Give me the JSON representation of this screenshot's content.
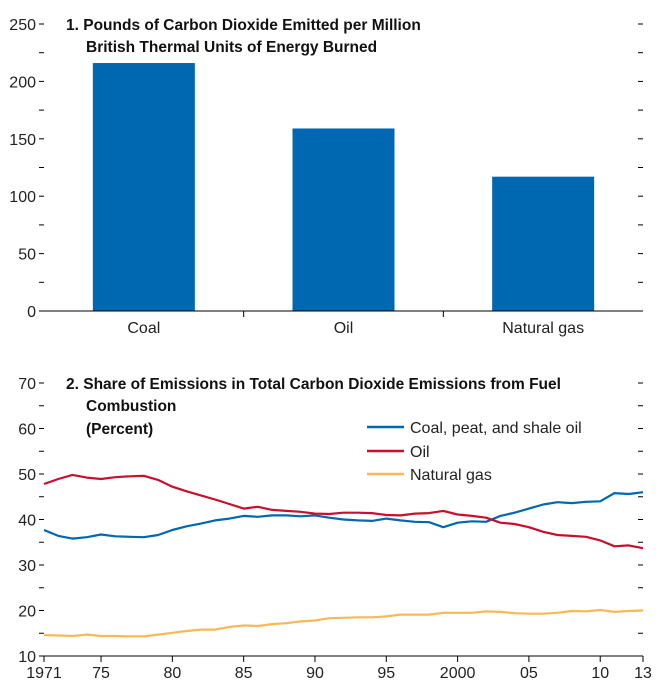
{
  "chart_data": [
    {
      "type": "bar",
      "title_line1": "1. Pounds of Carbon Dioxide Emitted per Million",
      "title_line2": "British Thermal Units of Energy Burned",
      "categories": [
        "Coal",
        "Oil",
        "Natural gas"
      ],
      "values": [
        216,
        159,
        117
      ],
      "ylim": [
        0,
        250
      ],
      "yticks": [
        "0",
        "50",
        "100",
        "150",
        "200",
        "250"
      ],
      "bar_color": "#0067b1"
    },
    {
      "type": "line",
      "title_line1": "2. Share of Emissions in Total Carbon Dioxide Emissions from Fuel",
      "title_line2": "Combustion",
      "title_line3": "(Percent)",
      "ylim": [
        10,
        70
      ],
      "yticks": [
        "10",
        "20",
        "30",
        "40",
        "50",
        "60",
        "70"
      ],
      "xticks": [
        {
          "year": 1971,
          "label": "1971"
        },
        {
          "year": 1975,
          "label": "75"
        },
        {
          "year": 1980,
          "label": "80"
        },
        {
          "year": 1985,
          "label": "85"
        },
        {
          "year": 1990,
          "label": "90"
        },
        {
          "year": 1995,
          "label": "95"
        },
        {
          "year": 2000,
          "label": "2000"
        },
        {
          "year": 2005,
          "label": "05"
        },
        {
          "year": 2010,
          "label": "10"
        },
        {
          "year": 2013,
          "label": "13"
        }
      ],
      "x": [
        1971,
        1972,
        1973,
        1974,
        1975,
        1976,
        1977,
        1978,
        1979,
        1980,
        1981,
        1982,
        1983,
        1984,
        1985,
        1986,
        1987,
        1988,
        1989,
        1990,
        1991,
        1992,
        1993,
        1994,
        1995,
        1996,
        1997,
        1998,
        1999,
        2000,
        2001,
        2002,
        2003,
        2004,
        2005,
        2006,
        2007,
        2008,
        2009,
        2010,
        2011,
        2012,
        2013
      ],
      "series": [
        {
          "name": "Coal, peat, and shale oil",
          "color": "#0067b1",
          "values": [
            37.7,
            36.4,
            35.8,
            36.1,
            36.7,
            36.3,
            36.2,
            36.1,
            36.6,
            37.7,
            38.5,
            39.1,
            39.8,
            40.2,
            40.8,
            40.6,
            40.9,
            40.9,
            40.7,
            40.9,
            40.4,
            40.0,
            39.8,
            39.7,
            40.2,
            39.8,
            39.5,
            39.4,
            38.3,
            39.3,
            39.6,
            39.5,
            40.8,
            41.5,
            42.4,
            43.3,
            43.8,
            43.6,
            43.9,
            44.0,
            45.8,
            45.6,
            46.0
          ]
        },
        {
          "name": "Oil",
          "color": "#c8102e",
          "values": [
            47.8,
            48.9,
            49.8,
            49.2,
            48.9,
            49.3,
            49.5,
            49.6,
            48.7,
            47.2,
            46.2,
            45.3,
            44.4,
            43.4,
            42.4,
            42.8,
            42.1,
            41.9,
            41.7,
            41.3,
            41.2,
            41.5,
            41.5,
            41.4,
            41.0,
            40.9,
            41.3,
            41.4,
            41.9,
            41.1,
            40.8,
            40.4,
            39.3,
            39.0,
            38.3,
            37.3,
            36.6,
            36.4,
            36.2,
            35.4,
            34.1,
            34.3,
            33.7
          ]
        },
        {
          "name": "Natural gas",
          "color": "#f7b955",
          "values": [
            14.6,
            14.5,
            14.4,
            14.7,
            14.4,
            14.4,
            14.3,
            14.3,
            14.7,
            15.1,
            15.5,
            15.8,
            15.8,
            16.4,
            16.7,
            16.6,
            17.0,
            17.2,
            17.6,
            17.8,
            18.3,
            18.4,
            18.5,
            18.5,
            18.7,
            19.1,
            19.1,
            19.1,
            19.5,
            19.5,
            19.5,
            19.8,
            19.7,
            19.4,
            19.3,
            19.3,
            19.5,
            19.9,
            19.8,
            20.1,
            19.7,
            19.9,
            20.0
          ]
        }
      ]
    }
  ]
}
